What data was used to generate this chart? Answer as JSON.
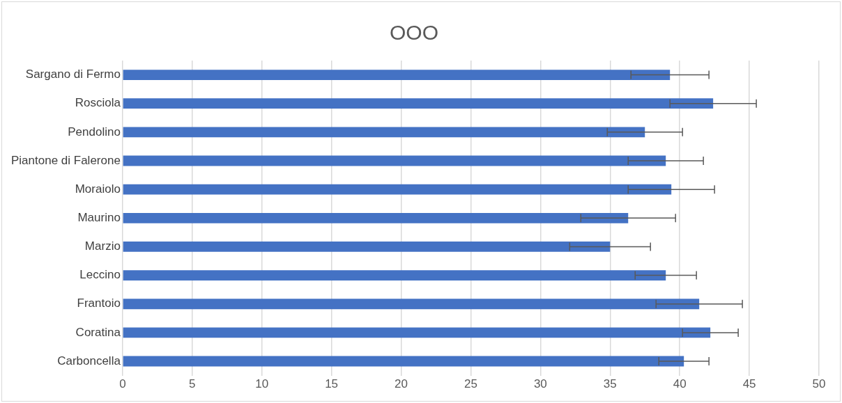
{
  "chart_data": {
    "type": "bar",
    "orientation": "horizontal",
    "title": "OOO",
    "categories": [
      "Sargano di Fermo",
      "Rosciola",
      "Pendolino",
      "Piantone di Falerone",
      "Moraiolo",
      "Maurino",
      "Marzio",
      "Leccino",
      "Frantoio",
      "Coratina",
      "Carboncella"
    ],
    "values": [
      39.3,
      42.4,
      37.5,
      39.0,
      39.4,
      36.3,
      35.0,
      39.0,
      41.4,
      42.2,
      40.3
    ],
    "errors": [
      2.8,
      3.1,
      2.7,
      2.7,
      3.1,
      3.4,
      2.9,
      2.2,
      3.1,
      2.0,
      1.8
    ],
    "color": "#4472c4",
    "xlim": [
      0,
      50
    ],
    "xticks": [
      0,
      5,
      10,
      15,
      20,
      25,
      30,
      35,
      40,
      45,
      50
    ],
    "grid": "x"
  }
}
